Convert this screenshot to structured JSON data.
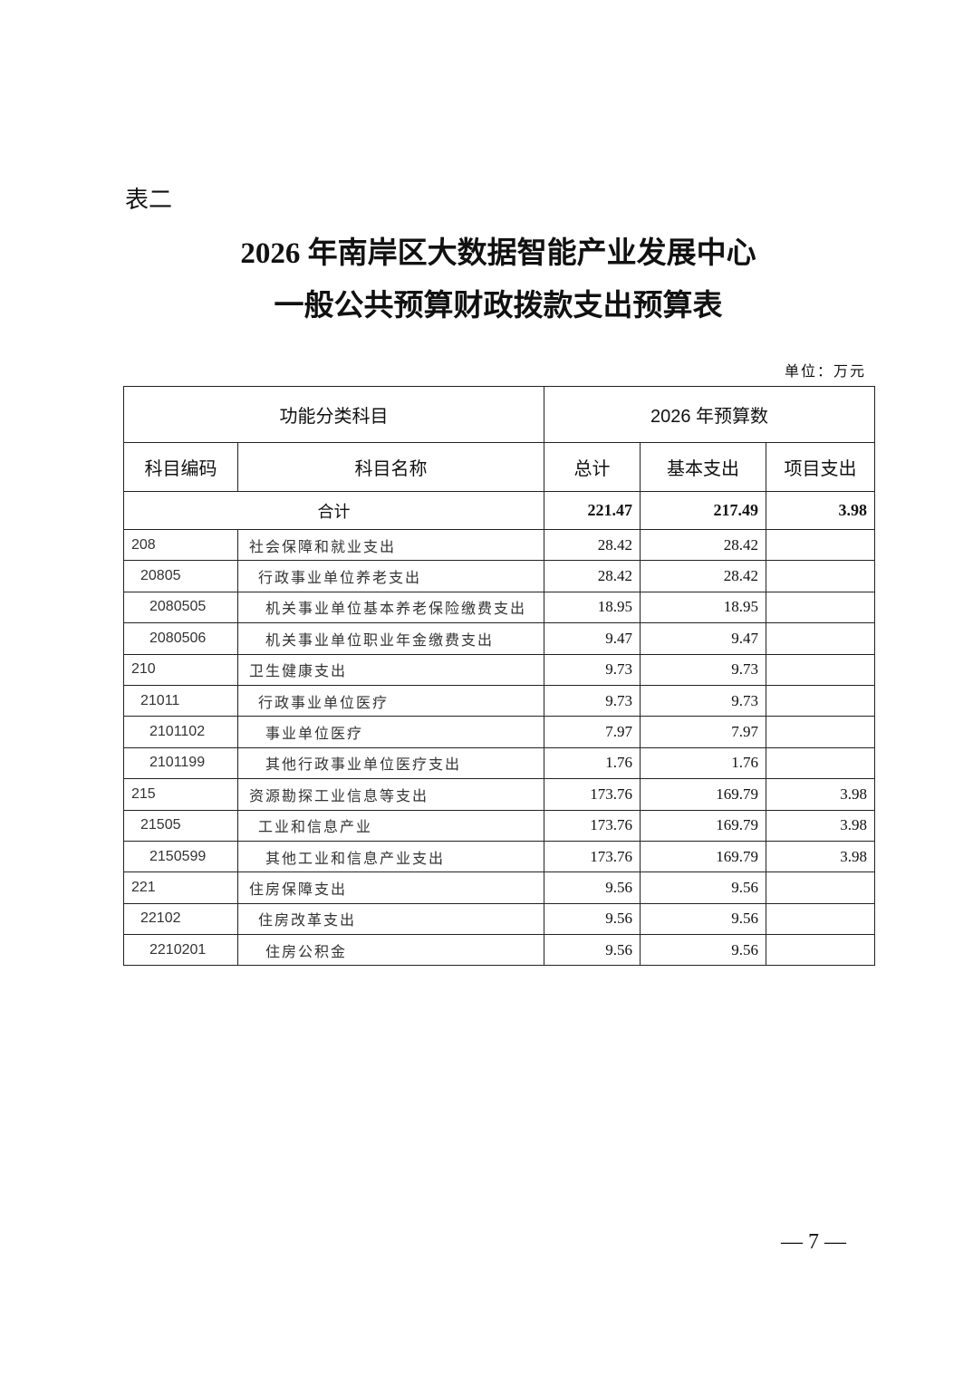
{
  "doc": {
    "label": "表二",
    "title_line1": "2026 年南岸区大数据智能产业发展中心",
    "title_line2": "一般公共预算财政拨款支出预算表",
    "unit": "单位：万元",
    "page_number": "— 7 —"
  },
  "table": {
    "header_group_left": "功能分类科目",
    "header_group_right": "2026 年预算数",
    "columns": [
      "科目编码",
      "科目名称",
      "总计",
      "基本支出",
      "项目支出"
    ],
    "total": {
      "label": "合计",
      "total": "221.47",
      "basic": "217.49",
      "project": "3.98"
    },
    "rows": [
      {
        "code": "208",
        "name": "社会保障和就业支出",
        "total": "28.42",
        "basic": "28.42",
        "project": "",
        "level": 0
      },
      {
        "code": "20805",
        "name": "行政事业单位养老支出",
        "total": "28.42",
        "basic": "28.42",
        "project": "",
        "level": 1
      },
      {
        "code": "2080505",
        "name": "机关事业单位基本养老保险缴费支出",
        "total": "18.95",
        "basic": "18.95",
        "project": "",
        "level": 2
      },
      {
        "code": "2080506",
        "name": "机关事业单位职业年金缴费支出",
        "total": "9.47",
        "basic": "9.47",
        "project": "",
        "level": 2
      },
      {
        "code": "210",
        "name": "卫生健康支出",
        "total": "9.73",
        "basic": "9.73",
        "project": "",
        "level": 0
      },
      {
        "code": "21011",
        "name": "行政事业单位医疗",
        "total": "9.73",
        "basic": "9.73",
        "project": "",
        "level": 1
      },
      {
        "code": "2101102",
        "name": "事业单位医疗",
        "total": "7.97",
        "basic": "7.97",
        "project": "",
        "level": 2
      },
      {
        "code": "2101199",
        "name": "其他行政事业单位医疗支出",
        "total": "1.76",
        "basic": "1.76",
        "project": "",
        "level": 2
      },
      {
        "code": "215",
        "name": "资源勘探工业信息等支出",
        "total": "173.76",
        "basic": "169.79",
        "project": "3.98",
        "level": 0
      },
      {
        "code": "21505",
        "name": "工业和信息产业",
        "total": "173.76",
        "basic": "169.79",
        "project": "3.98",
        "level": 1
      },
      {
        "code": "2150599",
        "name": "其他工业和信息产业支出",
        "total": "173.76",
        "basic": "169.79",
        "project": "3.98",
        "level": 2
      },
      {
        "code": "221",
        "name": "住房保障支出",
        "total": "9.56",
        "basic": "9.56",
        "project": "",
        "level": 0
      },
      {
        "code": "22102",
        "name": "住房改革支出",
        "total": "9.56",
        "basic": "9.56",
        "project": "",
        "level": 1
      },
      {
        "code": "2210201",
        "name": "住房公积金",
        "total": "9.56",
        "basic": "9.56",
        "project": "",
        "level": 2
      }
    ]
  }
}
